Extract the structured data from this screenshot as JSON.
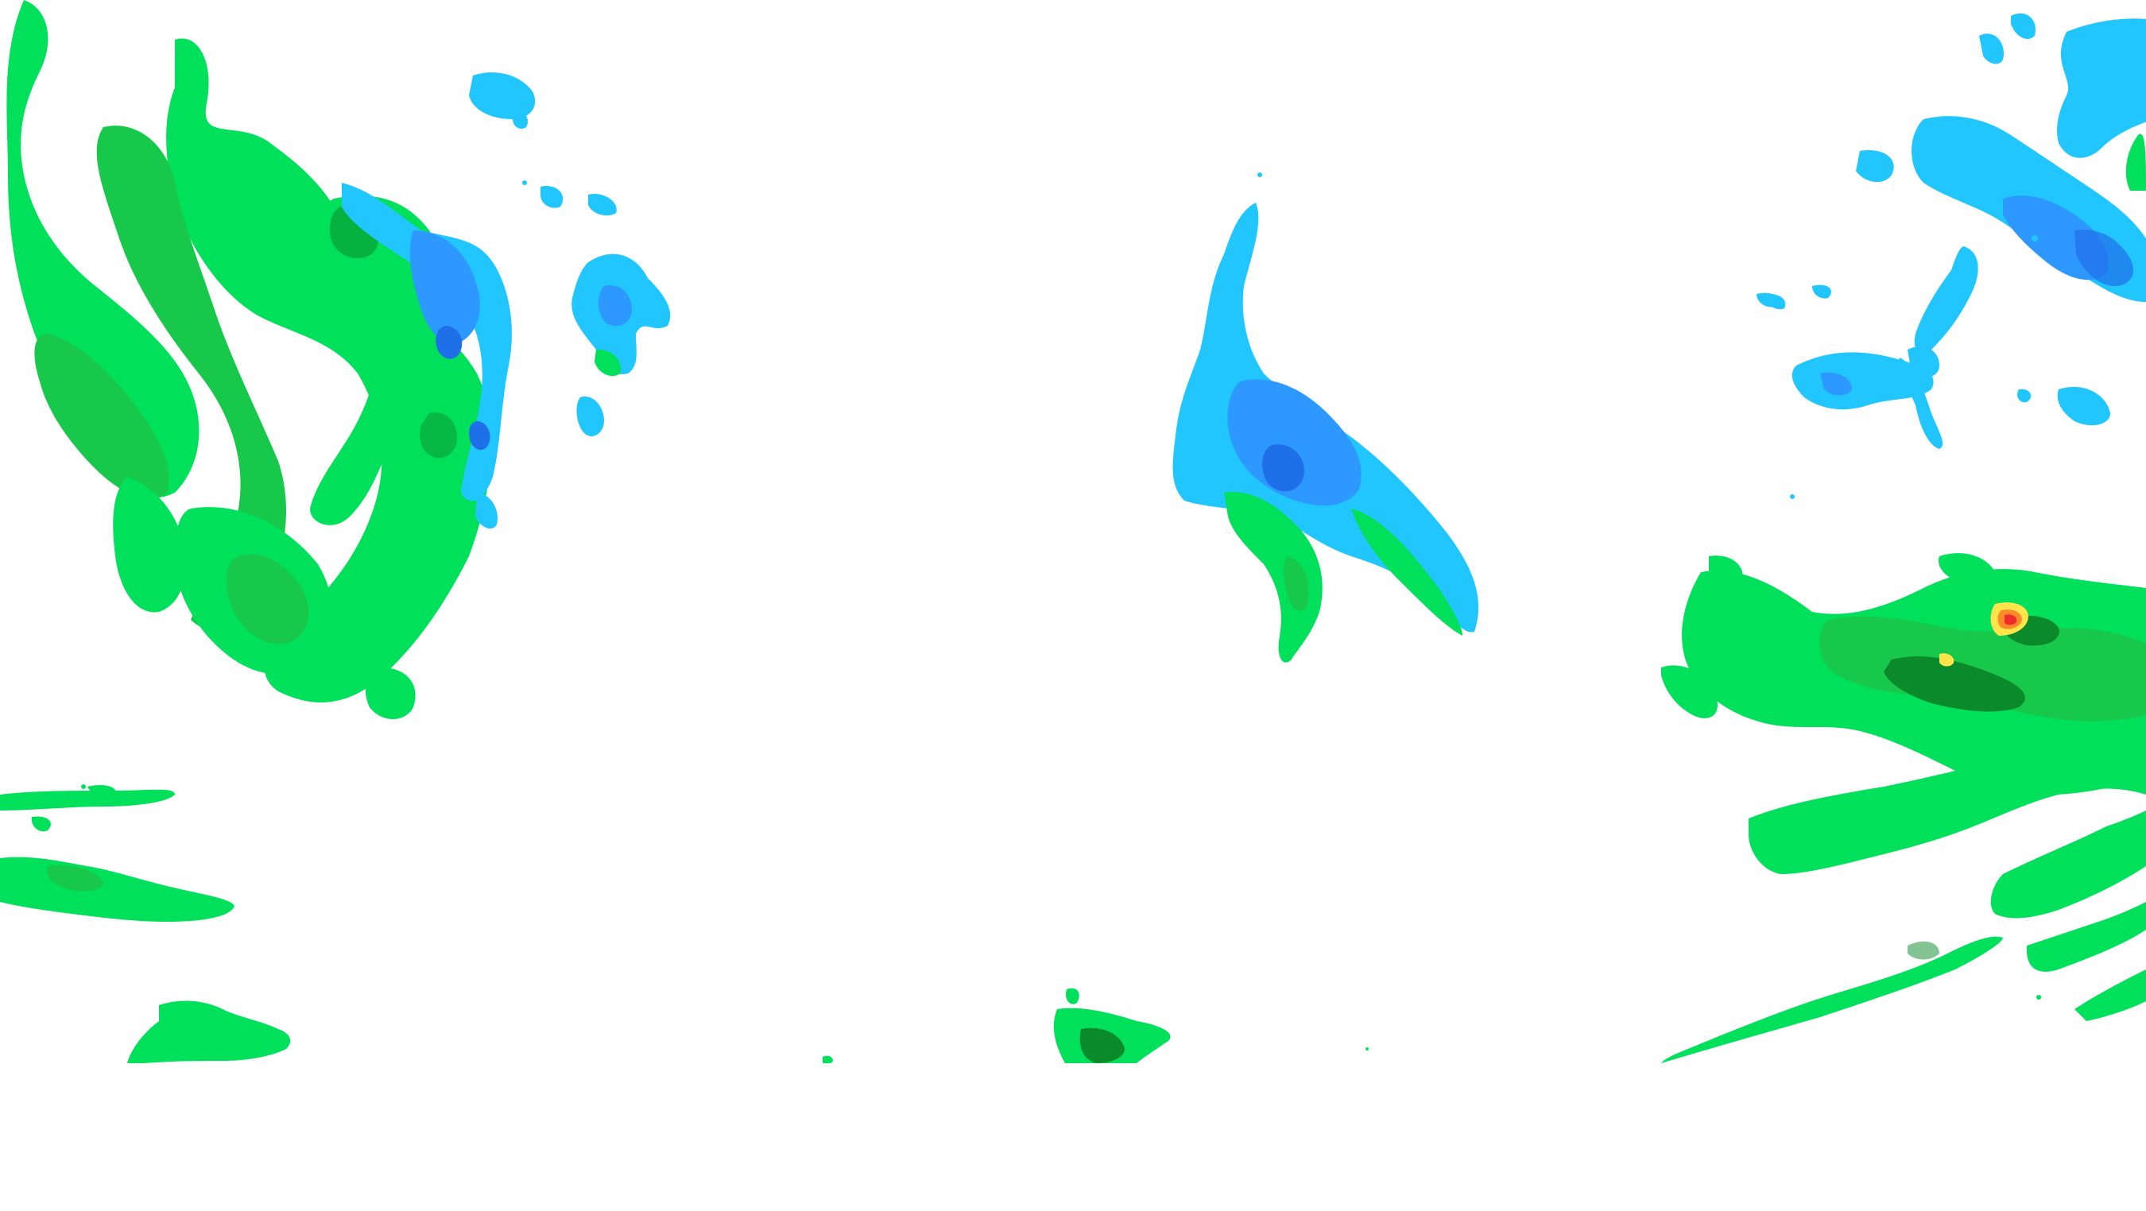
{
  "map": {
    "layer": "precipitation-radar-overlay",
    "background_color": "#ffffff",
    "palette": {
      "light_green": "#00e05a",
      "green": "#18c84a",
      "dark_green": "#0a8a2a",
      "cyan": "#12e2ff",
      "light_blue": "#21c6ff",
      "blue": "#2d98ff",
      "deep_blue": "#1f6fe8",
      "yellow": "#ffe44a",
      "orange": "#ff8a2a",
      "red": "#ef2c2c"
    },
    "visible_cells": [
      "west-spiral-band",
      "north-west-cyan-cluster",
      "central-blue-plume",
      "north-east-cyan-streamers",
      "east-green-band",
      "south-west-green-band",
      "south-central-cell",
      "south-east-spiral-arcs"
    ]
  }
}
